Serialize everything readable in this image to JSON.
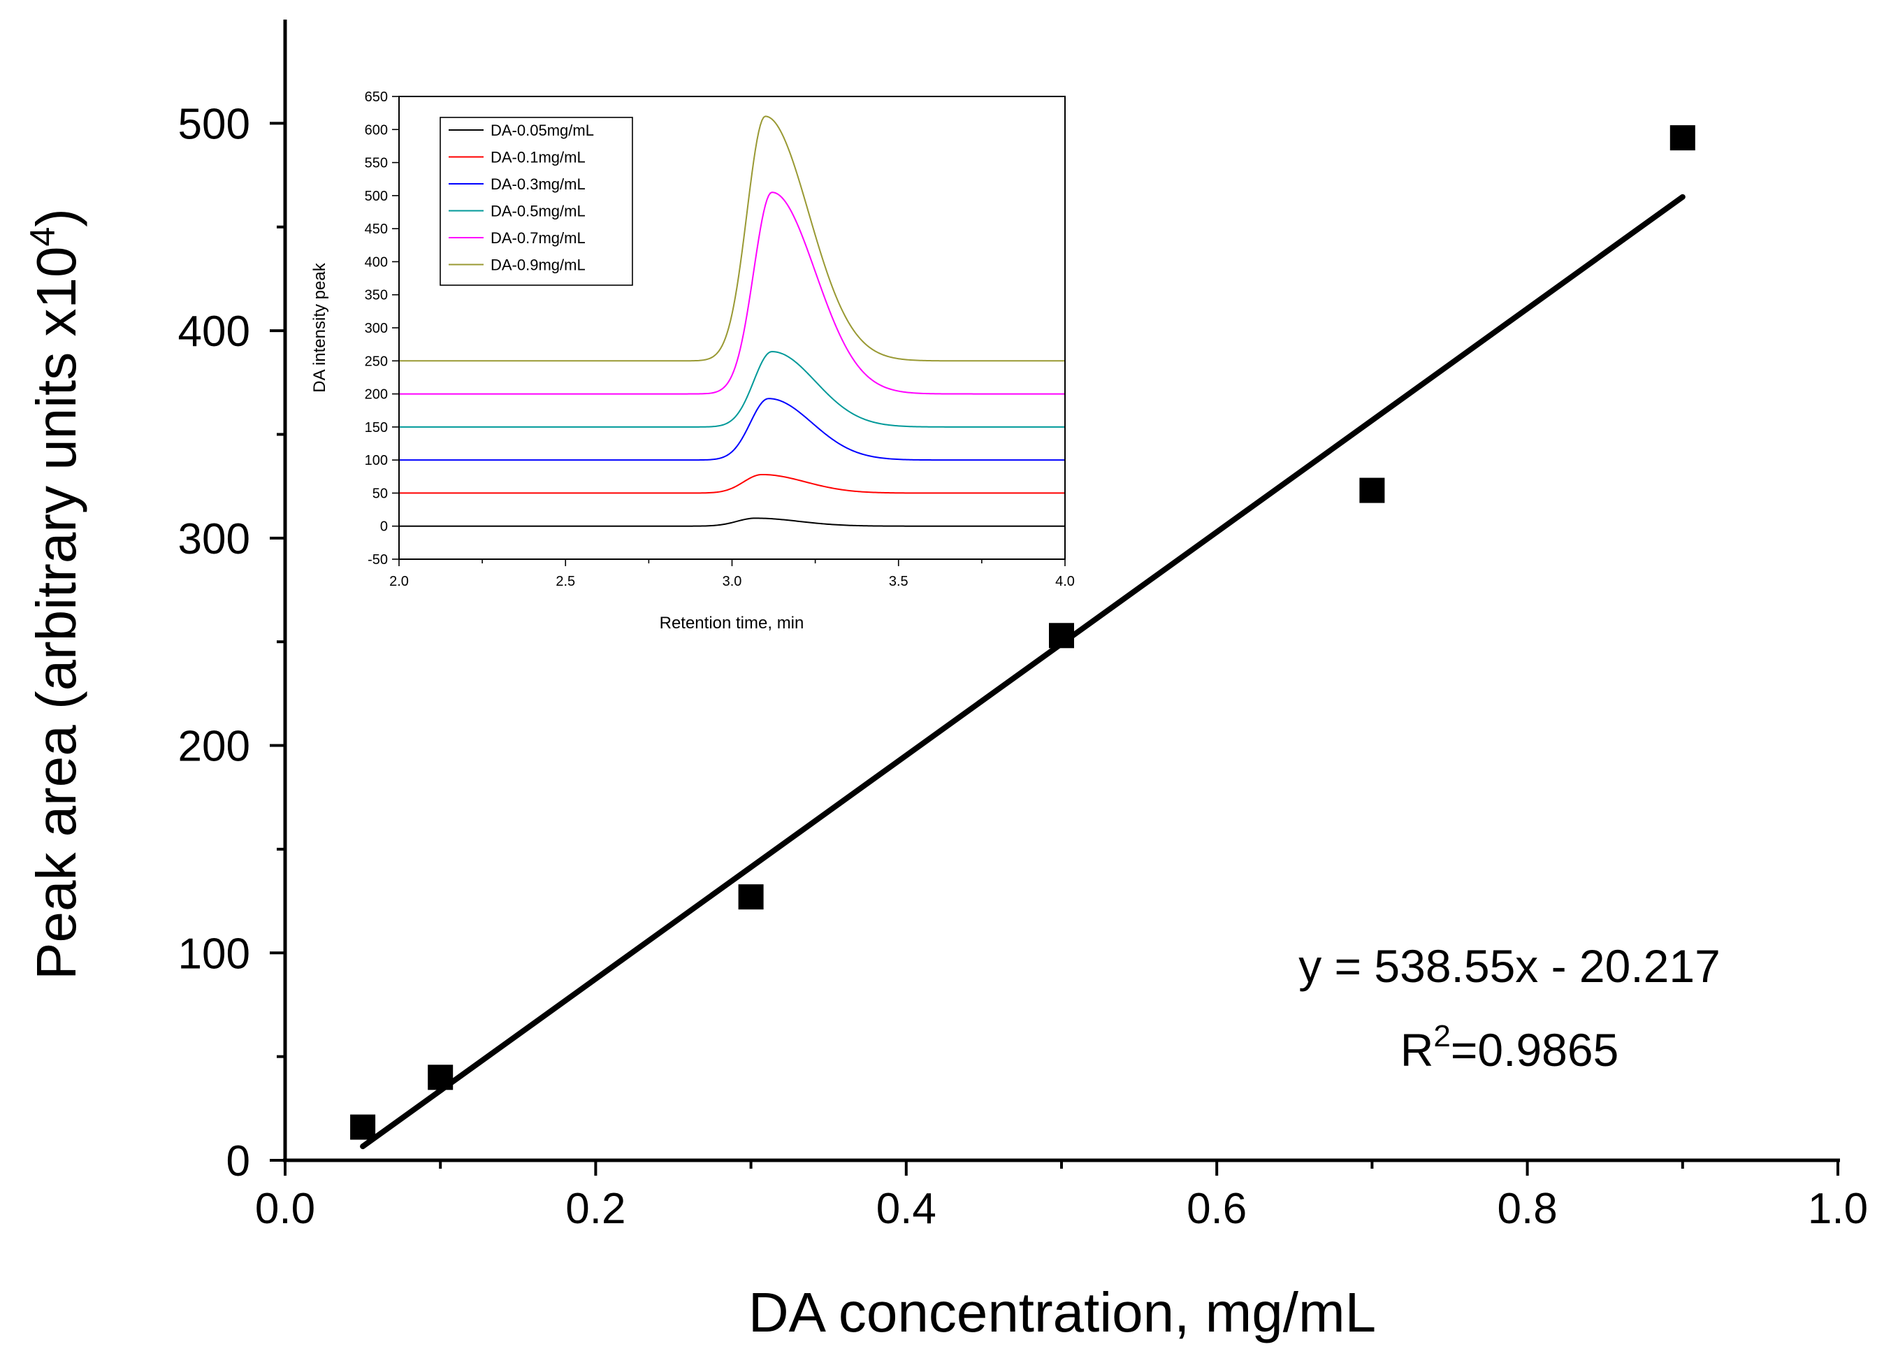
{
  "chart_data": [
    {
      "type": "scatter",
      "title": "",
      "xlabel": "DA concentration, mg/mL",
      "ylabel": "Peak area (arbitrary units x10",
      "ylabel_superscript": "4",
      "ylabel_close": ")",
      "xlim": [
        0.0,
        1.0
      ],
      "ylim": [
        0,
        550
      ],
      "xticks": [
        0.0,
        0.2,
        0.4,
        0.6,
        0.8,
        1.0
      ],
      "xtick_labels": [
        "0.0",
        "0.2",
        "0.4",
        "0.6",
        "0.8",
        "1.0"
      ],
      "yticks": [
        0,
        100,
        200,
        300,
        400,
        500
      ],
      "ytick_labels": [
        "0",
        "100",
        "200",
        "300",
        "400",
        "500"
      ],
      "series": [
        {
          "name": "Peak area",
          "marker": "square",
          "color": "#000000",
          "x": [
            0.05,
            0.1,
            0.3,
            0.5,
            0.7,
            0.9
          ],
          "y": [
            16,
            40,
            127,
            253,
            323,
            493
          ]
        }
      ],
      "fit": {
        "slope": 538.55,
        "intercept": -20.217,
        "x_range": [
          0.05,
          0.9
        ],
        "color": "#000000"
      },
      "equation_text": "y = 538.55x - 20.217",
      "r2_prefix": "R",
      "r2_superscript": "2",
      "r2_value": "=0.9865"
    },
    {
      "type": "line",
      "title": "",
      "xlabel": "Retention time, min",
      "ylabel": "DA intensity peak",
      "xlim": [
        2.0,
        4.0
      ],
      "ylim": [
        -50,
        650
      ],
      "xticks": [
        2.0,
        2.5,
        3.0,
        3.5,
        4.0
      ],
      "xtick_labels": [
        "2.0",
        "2.5",
        "3.0",
        "3.5",
        "4.0"
      ],
      "yticks": [
        -50,
        0,
        50,
        100,
        150,
        200,
        250,
        300,
        350,
        400,
        450,
        500,
        550,
        600,
        650
      ],
      "ytick_labels": [
        "-50",
        "0",
        "50",
        "100",
        "150",
        "200",
        "250",
        "300",
        "350",
        "400",
        "450",
        "500",
        "550",
        "600",
        "650"
      ],
      "legend_position": "top-left",
      "series": [
        {
          "name": "DA-0.05mg/mL",
          "color": "#000000",
          "baseline": 0,
          "peak_height": 12,
          "peak_time": 3.07
        },
        {
          "name": "DA-0.1mg/mL",
          "color": "#ff0000",
          "baseline": 50,
          "peak_height": 28,
          "peak_time": 3.09
        },
        {
          "name": "DA-0.3mg/mL",
          "color": "#0000ff",
          "baseline": 100,
          "peak_height": 93,
          "peak_time": 3.11
        },
        {
          "name": "DA-0.5mg/mL",
          "color": "#009999",
          "baseline": 150,
          "peak_height": 114,
          "peak_time": 3.12
        },
        {
          "name": "DA-0.7mg/mL",
          "color": "#ff00ff",
          "baseline": 200,
          "peak_height": 305,
          "peak_time": 3.12
        },
        {
          "name": "DA-0.9mg/mL",
          "color": "#999933",
          "baseline": 250,
          "peak_height": 370,
          "peak_time": 3.1
        }
      ]
    }
  ]
}
